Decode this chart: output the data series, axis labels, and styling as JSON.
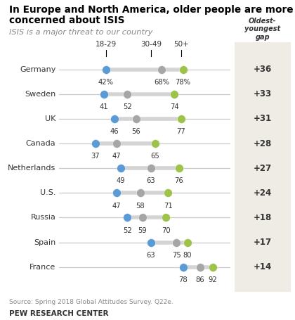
{
  "title_line1": "In Europe and North America, older people are more",
  "title_line2": "concerned about ISIS",
  "subtitle": "ISIS is a major threat to our country",
  "countries": [
    "Germany",
    "Sweden",
    "UK",
    "Canada",
    "Netherlands",
    "U.S.",
    "Russia",
    "Spain",
    "France"
  ],
  "values": {
    "Germany": [
      42,
      68,
      78
    ],
    "Sweden": [
      41,
      52,
      74
    ],
    "UK": [
      46,
      56,
      77
    ],
    "Canada": [
      37,
      47,
      65
    ],
    "Netherlands": [
      49,
      63,
      76
    ],
    "U.S.": [
      47,
      58,
      71
    ],
    "Russia": [
      52,
      59,
      70
    ],
    "Spain": [
      63,
      75,
      80
    ],
    "France": [
      78,
      86,
      92
    ]
  },
  "gaps": {
    "Germany": "+36",
    "Sweden": "+33",
    "UK": "+31",
    "Canada": "+28",
    "Netherlands": "+27",
    "U.S.": "+24",
    "Russia": "+18",
    "Spain": "+17",
    "France": "+14"
  },
  "germany_labels": [
    "42%",
    "68%",
    "78%"
  ],
  "color_young": "#5b9bd5",
  "color_mid": "#a6a6a6",
  "color_old": "#9dc34a",
  "line_color": "#c8c8c8",
  "thick_line_color": "#d4d4d4",
  "xmin": 20,
  "xmax": 100,
  "source": "Source: Spring 2018 Global Attitudes Survey. Q22e.",
  "attribution": "PEW RESEARCH CENTER",
  "gap_header": "Oldest-\nyoungest\ngap",
  "age_labels": [
    "18-29",
    "30-49",
    "50+"
  ],
  "gap_col_bg": "#eeece4"
}
